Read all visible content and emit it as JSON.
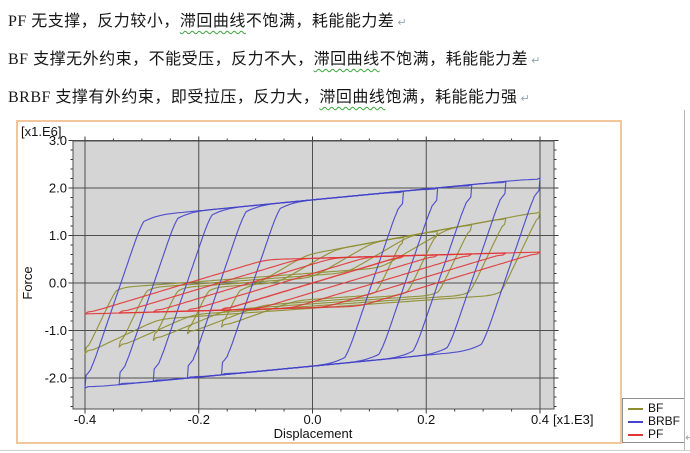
{
  "document": {
    "paragraphs": [
      {
        "segments": [
          {
            "text": "PF 无支撑，反力较小，",
            "wavy": false
          },
          {
            "text": "滞回曲线",
            "wavy": true
          },
          {
            "text": "不饱满，耗能能力差",
            "wavy": false
          }
        ]
      },
      {
        "segments": [
          {
            "text": "BF 支撑无外约束，不能受压，反力不大，",
            "wavy": false
          },
          {
            "text": "滞回曲线",
            "wavy": true
          },
          {
            "text": "不饱满，耗能能力差",
            "wavy": false
          }
        ]
      },
      {
        "segments": [
          {
            "text": "BRBF 支撑有外约束，即受拉压，反力大，",
            "wavy": false
          },
          {
            "text": "滞回曲线",
            "wavy": true
          },
          {
            "text": "饱满，耗能能力强",
            "wavy": false
          }
        ]
      }
    ],
    "paragraph_mark": "↵"
  },
  "chart_data": {
    "type": "line",
    "title": "",
    "xlabel": "Displacement",
    "ylabel": "Force",
    "x_unit_label": "[x1.E3]",
    "y_unit_label": "[x1.E6]",
    "x_ticks": [
      -0.4,
      -0.2,
      0,
      0.2,
      0.4
    ],
    "x_tick_labels": [
      "-0.4",
      "-0.2",
      "0.0",
      "0.2",
      "0.4"
    ],
    "y_ticks": [
      3,
      2,
      1,
      0,
      -1,
      -2
    ],
    "y_tick_labels": [
      "3.0",
      "2.0",
      "1.0",
      "0.0",
      "-1.0",
      "-2.0"
    ],
    "xlim": [
      -0.421,
      0.425
    ],
    "ylim": [
      -2.65,
      3.0
    ],
    "x_minor_step": 0.05,
    "y_minor_step": 0.2,
    "grid": true,
    "plot_bg_color": "#d5d5d5",
    "grid_color": "#4f4f4f",
    "frame_color": "#f2c69b",
    "cycle_amplitudes_x1e3": [
      0.16,
      0.22,
      0.28,
      0.34,
      0.4
    ],
    "legend": {
      "position": "bottom-right",
      "entries": [
        {
          "label": "BF",
          "color": "#8d8d2f"
        },
        {
          "label": "BRBF",
          "color": "#4343cb"
        },
        {
          "label": "PF",
          "color": "#e23434"
        }
      ]
    },
    "series": [
      {
        "name": "BF",
        "color": "#8d8d2f",
        "model": "pinched",
        "peak_force_x1e6": 1.5,
        "params": {
          "t0": 0.62,
          "t1": 2.2,
          "c0": 0.55,
          "c1": 2.35,
          "ke": 25,
          "slip_up": 0.9,
          "slip_dn": 0.85,
          "rise_k": 7,
          "dive_width": 0.13,
          "round": 3
        }
      },
      {
        "name": "BRBF",
        "color": "#4343cb",
        "model": "bilinear",
        "peak_force_x1e6": 2.2,
        "params": {
          "ke": 35,
          "fy0": 1.75,
          "kh": 1.15,
          "round": 6
        }
      },
      {
        "name": "PF",
        "color": "#e23434",
        "model": "bilinear",
        "peak_force_x1e6": 0.65,
        "params": {
          "ke": 3.6,
          "fy0": 0.52,
          "kh": 0.33,
          "round": 3
        }
      }
    ]
  }
}
